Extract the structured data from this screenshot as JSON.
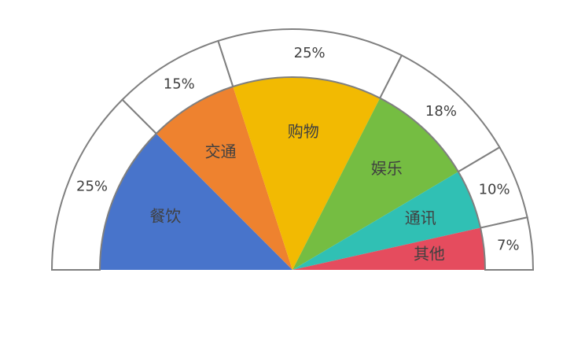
{
  "chart_data": {
    "type": "pie",
    "variant": "semicircle-with-outer-percent-ring",
    "title": "",
    "slices": [
      {
        "label": "餐饮",
        "value": 25,
        "percent_label": "25%",
        "color": "#4874CB"
      },
      {
        "label": "交通",
        "value": 15,
        "percent_label": "15%",
        "color": "#EE822F"
      },
      {
        "label": "购物",
        "value": 25,
        "percent_label": "25%",
        "color": "#F2BA02"
      },
      {
        "label": "娱乐",
        "value": 18,
        "percent_label": "18%",
        "color": "#75BD42"
      },
      {
        "label": "通讯",
        "value": 10,
        "percent_label": "10%",
        "color": "#30C0B4"
      },
      {
        "label": "其他",
        "value": 7,
        "percent_label": "7%",
        "color": "#E54C5E"
      }
    ],
    "ring_outline_color": "#7F7F7F"
  }
}
